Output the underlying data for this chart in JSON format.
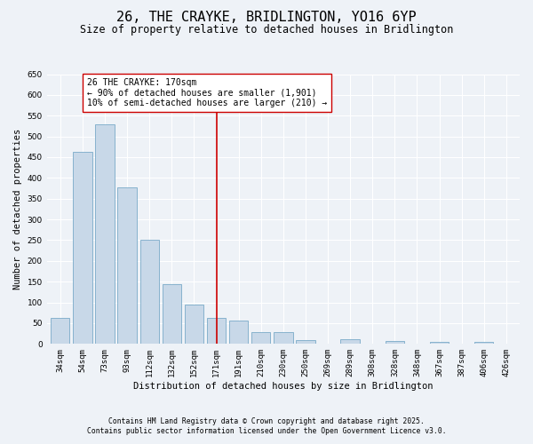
{
  "title": "26, THE CRAYKE, BRIDLINGTON, YO16 6YP",
  "subtitle": "Size of property relative to detached houses in Bridlington",
  "xlabel": "Distribution of detached houses by size in Bridlington",
  "ylabel": "Number of detached properties",
  "categories": [
    "34sqm",
    "54sqm",
    "73sqm",
    "93sqm",
    "112sqm",
    "132sqm",
    "152sqm",
    "171sqm",
    "191sqm",
    "210sqm",
    "230sqm",
    "250sqm",
    "269sqm",
    "289sqm",
    "308sqm",
    "328sqm",
    "348sqm",
    "367sqm",
    "387sqm",
    "406sqm",
    "426sqm"
  ],
  "values": [
    63,
    463,
    530,
    377,
    252,
    143,
    95,
    63,
    57,
    28,
    28,
    10,
    0,
    12,
    0,
    8,
    0,
    5,
    0,
    5,
    0
  ],
  "bar_color": "#c8d8e8",
  "bar_edge_color": "#7aaac8",
  "vline_x_index": 7,
  "vline_color": "#cc0000",
  "annotation_text": "26 THE CRAYKE: 170sqm\n← 90% of detached houses are smaller (1,901)\n10% of semi-detached houses are larger (210) →",
  "annotation_box_color": "#ffffff",
  "annotation_box_edge_color": "#cc0000",
  "ylim": [
    0,
    650
  ],
  "yticks": [
    0,
    50,
    100,
    150,
    200,
    250,
    300,
    350,
    400,
    450,
    500,
    550,
    600,
    650
  ],
  "footnote1": "Contains HM Land Registry data © Crown copyright and database right 2025.",
  "footnote2": "Contains public sector information licensed under the Open Government Licence v3.0.",
  "background_color": "#eef2f7",
  "title_fontsize": 11,
  "subtitle_fontsize": 8.5,
  "axis_label_fontsize": 7.5,
  "tick_fontsize": 6.5,
  "annotation_fontsize": 7,
  "footnote_fontsize": 5.8
}
